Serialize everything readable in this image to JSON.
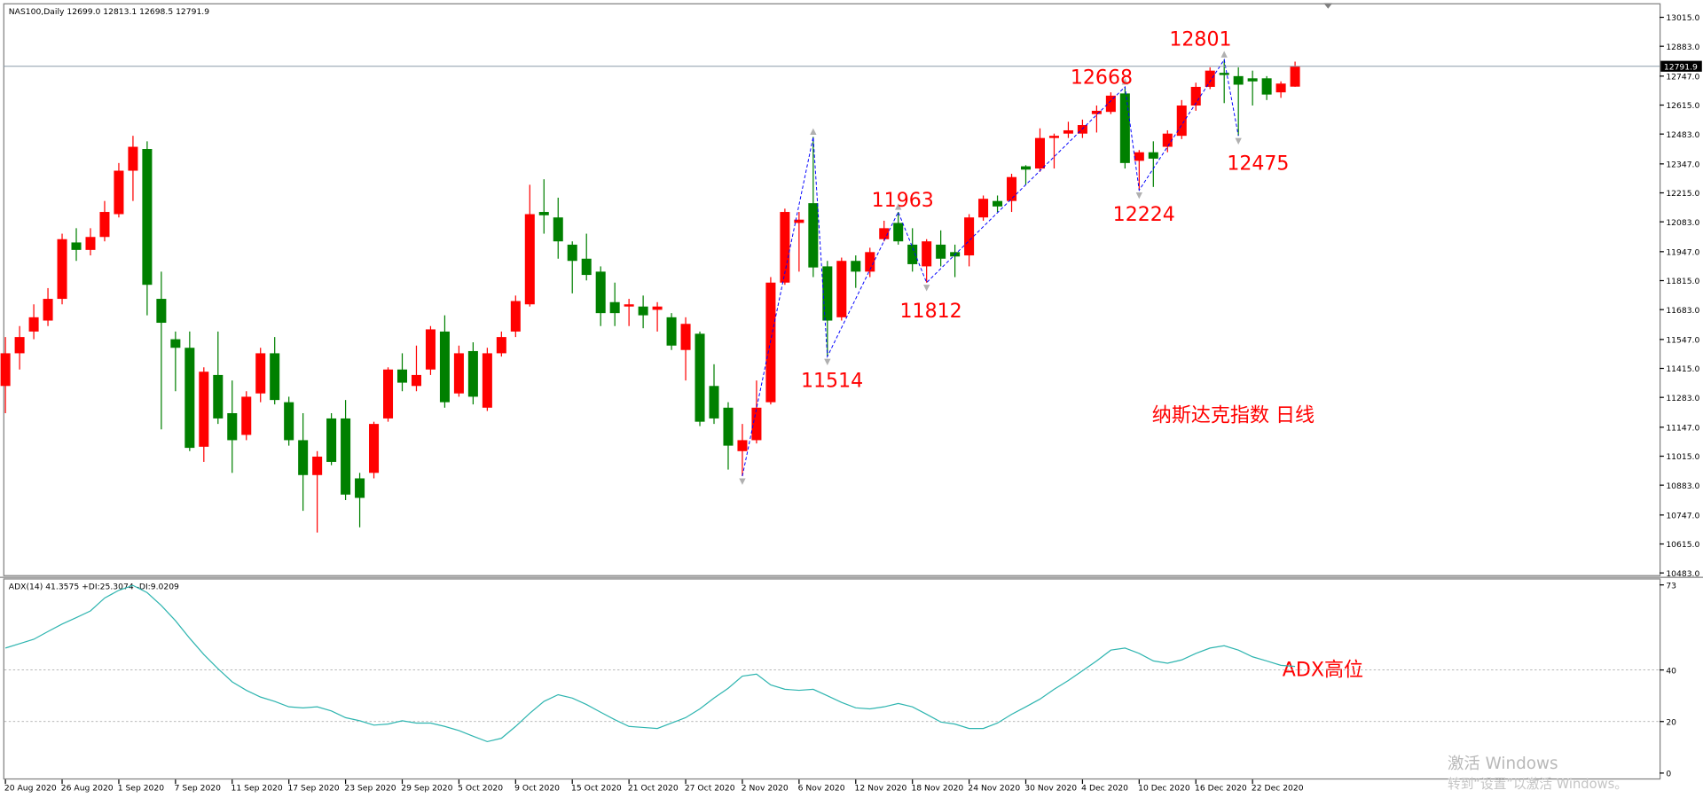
{
  "chart_data": [
    {
      "type": "candlestick",
      "header": "NAS100,Daily  12699.0 12813.1 12698.5 12791.9",
      "up_color": "#ff0000",
      "down_color": "#008000",
      "categories": [
        "20 Aug 2020",
        null,
        null,
        null,
        "26 Aug 2020",
        null,
        null,
        null,
        "1 Sep 2020",
        null,
        null,
        null,
        "7 Sep 2020",
        null,
        null,
        null,
        "11 Sep 2020",
        null,
        null,
        null,
        "17 Sep 2020",
        null,
        null,
        null,
        "23 Sep 2020",
        null,
        null,
        null,
        "29 Sep 2020",
        null,
        null,
        null,
        "5 Oct 2020",
        null,
        null,
        null,
        "9 Oct 2020",
        null,
        null,
        null,
        "15 Oct 2020",
        null,
        null,
        null,
        "21 Oct 2020",
        null,
        null,
        null,
        "27 Oct 2020",
        null,
        null,
        null,
        "2 Nov 2020",
        null,
        null,
        null,
        "6 Nov 2020",
        null,
        null,
        null,
        "12 Nov 2020",
        null,
        null,
        null,
        "18 Nov 2020",
        null,
        null,
        null,
        "24 Nov 2020",
        null,
        null,
        null,
        "30 Nov 2020",
        null,
        null,
        null,
        "4 Dec 2020",
        null,
        null,
        null,
        "10 Dec 2020",
        null,
        null,
        null,
        "16 Dec 2020",
        null,
        null,
        null,
        "22 Dec 2020",
        null,
        null,
        null
      ],
      "open": [
        11335,
        11484,
        11583,
        11633,
        11732,
        11989,
        11955,
        12014,
        12118,
        12316,
        12415,
        11732,
        11548,
        11509,
        11058,
        11385,
        11211,
        11112,
        11301,
        11484,
        11261,
        11088,
        10929,
        11187,
        11187,
        10914,
        10939,
        11187,
        11410,
        11335,
        11410,
        11583,
        11301,
        11494,
        11236,
        11484,
        11583,
        11707,
        12128,
        12103,
        11979,
        11915,
        11856,
        11717,
        11697,
        11697,
        11682,
        11648,
        11499,
        11573,
        11335,
        11236,
        11038,
        11088,
        11261,
        11806,
        12078,
        12168,
        11880,
        11648,
        11905,
        11856,
        12004,
        12078,
        11979,
        11880,
        11979,
        11945,
        11930,
        12103,
        12178,
        12178,
        12336,
        12326,
        12465,
        12485,
        12485,
        12574,
        12584,
        12668,
        12361,
        12400,
        12425,
        12475,
        12613,
        12698,
        12762,
        12747,
        12737,
        12737,
        12673,
        12699
      ],
      "high": [
        11558,
        11608,
        11707,
        11781,
        12029,
        12054,
        12054,
        12178,
        12351,
        12475,
        12450,
        11856,
        11583,
        11583,
        11420,
        11583,
        11360,
        11311,
        11509,
        11558,
        11286,
        11211,
        11038,
        11211,
        11271,
        10939,
        11172,
        11420,
        11484,
        11519,
        11608,
        11657,
        11519,
        11534,
        11509,
        11583,
        11747,
        12252,
        12277,
        12193,
        11994,
        12029,
        11880,
        11806,
        11732,
        11747,
        11717,
        11667,
        11648,
        11583,
        11434,
        11261,
        11162,
        11360,
        11831,
        12143,
        12128,
        12470,
        11905,
        11920,
        11930,
        11965,
        12088,
        12128,
        12054,
        12004,
        12044,
        11979,
        12118,
        12203,
        12203,
        12302,
        12341,
        12509,
        12485,
        12539,
        12549,
        12613,
        12673,
        12698,
        12410,
        12450,
        12500,
        12638,
        12717,
        12787,
        12822,
        12787,
        12772,
        12747,
        12723,
        12813.1
      ],
      "low": [
        11211,
        11410,
        11548,
        11608,
        11707,
        11905,
        11930,
        11994,
        12103,
        12178,
        11657,
        11137,
        11311,
        11038,
        10989,
        11162,
        10939,
        11088,
        11261,
        11251,
        11063,
        10766,
        10667,
        10974,
        10815,
        10691,
        10914,
        11172,
        11311,
        11311,
        11385,
        11236,
        11286,
        11251,
        11221,
        11469,
        11558,
        11697,
        12029,
        11915,
        11757,
        11816,
        11608,
        11608,
        11608,
        11598,
        11583,
        11499,
        11360,
        11152,
        11162,
        10954,
        10924,
        11073,
        11251,
        11796,
        11856,
        11831,
        11469,
        11633,
        11782,
        11831,
        11994,
        11979,
        11856,
        11806,
        11880,
        11831,
        11880,
        12088,
        12128,
        12128,
        12252,
        12311,
        12326,
        12465,
        12465,
        12490,
        12574,
        12326,
        12227,
        12242,
        12400,
        12460,
        12589,
        12688,
        12624,
        12475,
        12613,
        12638,
        12648,
        12698.5
      ],
      "close": [
        11484,
        11558,
        11648,
        11732,
        12004,
        11955,
        12014,
        12128,
        12316,
        12425,
        11796,
        11623,
        11509,
        11053,
        11400,
        11187,
        11088,
        11286,
        11484,
        11271,
        11088,
        10929,
        11013,
        10989,
        10840,
        10825,
        11162,
        11410,
        11350,
        11385,
        11593,
        11261,
        11484,
        11286,
        11484,
        11558,
        11722,
        12118,
        12113,
        11994,
        11905,
        11841,
        11667,
        11667,
        11707,
        11657,
        11697,
        11519,
        11618,
        11172,
        11187,
        11063,
        11088,
        11236,
        11806,
        12128,
        12093,
        11875,
        11633,
        11905,
        11856,
        11945,
        12054,
        11994,
        11890,
        11994,
        11915,
        11925,
        12103,
        12188,
        12153,
        12287,
        12321,
        12465,
        12475,
        12500,
        12524,
        12589,
        12658,
        12351,
        12400,
        12371,
        12485,
        12613,
        12698,
        12772,
        12752,
        12708,
        12723,
        12663,
        12713,
        12791.9
      ],
      "ylim": [
        10473,
        13079
      ],
      "yticks": [
        {
          "value": 13015,
          "label": "13015.0"
        },
        {
          "value": 12883,
          "label": "12883.0"
        },
        {
          "value": 12747,
          "label": "12747.0"
        },
        {
          "value": 12615,
          "label": "12615.0"
        },
        {
          "value": 12483,
          "label": "12483.0"
        },
        {
          "value": 12347,
          "label": "12347.0"
        },
        {
          "value": 12215,
          "label": "12215.0"
        },
        {
          "value": 12083,
          "label": "12083.0"
        },
        {
          "value": 11947,
          "label": "11947.0"
        },
        {
          "value": 11815,
          "label": "11815.0"
        },
        {
          "value": 11683,
          "label": "11683.0"
        },
        {
          "value": 11547,
          "label": "11547.0"
        },
        {
          "value": 11415,
          "label": "11415.0"
        },
        {
          "value": 11283,
          "label": "11283.0"
        },
        {
          "value": 11147,
          "label": "11147.0"
        },
        {
          "value": 11015,
          "label": "11015.0"
        },
        {
          "value": 10883,
          "label": "10883.0"
        },
        {
          "value": 10747,
          "label": "10747.0"
        },
        {
          "value": 10615,
          "label": "10615.0"
        },
        {
          "value": 10483,
          "label": "10483.0"
        }
      ],
      "annotations": [
        "12801",
        "12668",
        "11963",
        "11812",
        "11514",
        "12224",
        "12475",
        "纳斯达克指数 日线",
        "ADX高位"
      ],
      "zigzag_color": "#0000ff"
    },
    {
      "type": "line",
      "header": "ADX(14) 41.3575 +DI:25.3074 -DI:9.0209",
      "color": "#2fb5b0",
      "values": [
        48.5,
        50.2,
        51.9,
        54.9,
        57.8,
        60.3,
        62.9,
        67.9,
        70.9,
        72.8,
        70.0,
        65.0,
        59.1,
        52.3,
        46.0,
        40.5,
        35.4,
        32.1,
        29.5,
        27.8,
        25.7,
        25.3,
        25.7,
        24.1,
        21.5,
        20.3,
        18.6,
        19.0,
        20.3,
        19.4,
        19.4,
        18.1,
        16.5,
        14.3,
        12.2,
        13.5,
        18.1,
        23.2,
        27.8,
        30.4,
        29.1,
        26.6,
        23.6,
        20.7,
        18.1,
        17.7,
        17.3,
        19.4,
        21.5,
        24.9,
        29.1,
        32.9,
        37.6,
        38.4,
        34.2,
        32.5,
        32.1,
        32.5,
        30.0,
        27.4,
        25.3,
        24.9,
        25.7,
        27.0,
        25.7,
        22.8,
        19.8,
        19.0,
        17.3,
        17.3,
        19.4,
        22.8,
        25.7,
        28.7,
        32.5,
        35.9,
        39.7,
        43.5,
        47.7,
        48.5,
        46.4,
        43.5,
        42.6,
        43.9,
        46.4,
        48.5,
        49.4,
        47.7,
        45.1,
        43.5,
        41.8,
        41.36
      ],
      "ylim": [
        -2.5,
        75.1
      ],
      "yticks": [
        0,
        20,
        40,
        73
      ],
      "grid_ticks": [
        20,
        40
      ]
    }
  ],
  "watermark": {
    "title": "激活 Windows",
    "hint": "转到“设置”以激活 Windows。"
  }
}
